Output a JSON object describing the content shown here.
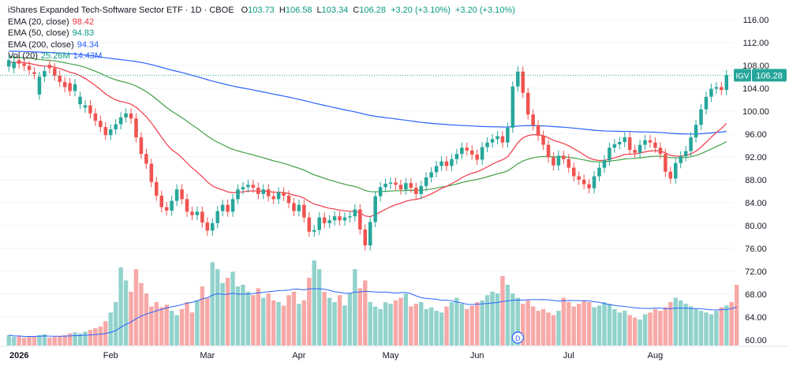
{
  "header": {
    "title": "iShares Expanded Tech-Software Sector ETF · 1D · CBOE",
    "o_label": "O",
    "o_value": "103.73",
    "h_label": "H",
    "h_value": "106.58",
    "l_label": "L",
    "l_value": "103.34",
    "c_label": "C",
    "c_value": "106.28",
    "change": "+3.20 (+3.10%)",
    "change2": "+3.20 (+3.10%)"
  },
  "indicators": [
    {
      "label": "EMA (20, close)",
      "value": "98.42",
      "color": "#f23645"
    },
    {
      "label": "EMA (50, close)",
      "value": "94.83",
      "color": "#089981"
    },
    {
      "label": "EMA (200, close)",
      "value": "94.34",
      "color": "#2962ff"
    },
    {
      "label": "Vol (20)",
      "value": "25.26M",
      "value2": "14.43M"
    }
  ],
  "colors": {
    "up": "#26a69a",
    "down": "#ef5350",
    "vol_up": "#92d2cc",
    "vol_down": "#f7a9a7",
    "grid": "#f0f3fa",
    "axis_text": "#131722"
  },
  "icons": {
    "dividend_marker": "dividend-icon"
  },
  "chart_data": {
    "type": "candlestick",
    "symbol": "IGV",
    "last_price": "106.28",
    "yaxis_ticks": [
      "116.00",
      "112.00",
      "108.00",
      "104.00",
      "100.00",
      "96.00",
      "92.00",
      "88.00",
      "84.00",
      "80.00",
      "76.00",
      "72.00",
      "68.00",
      "64.00",
      "60.00"
    ],
    "ylim": [
      59,
      117.5
    ],
    "xaxis_labels": [
      {
        "label": "2026",
        "index": 0
      },
      {
        "label": "Feb",
        "index": 20
      },
      {
        "label": "Mar",
        "index": 39
      },
      {
        "label": "Apr",
        "index": 57
      },
      {
        "label": "May",
        "index": 75
      },
      {
        "label": "Jun",
        "index": 92
      },
      {
        "label": "Jul",
        "index": 110
      },
      {
        "label": "Aug",
        "index": 127
      }
    ],
    "dividend_marker_index": 100,
    "dividend_marker_label": "D",
    "close": [
      108.9,
      108.6,
      108.3,
      107.9,
      107.2,
      106.5,
      106.0,
      107.0,
      107.5,
      106.2,
      105.1,
      104.2,
      103.5,
      104.7,
      102.5,
      101.0,
      99.6,
      98.3,
      97.2,
      95.8,
      96.8,
      97.7,
      98.9,
      99.6,
      98.7,
      95.4,
      92.5,
      90.8,
      87.6,
      85.2,
      83.2,
      82.6,
      84.3,
      86.3,
      84.6,
      82.4,
      81.8,
      82.4,
      80.5,
      79.1,
      80.4,
      82.5,
      83.6,
      82.4,
      84.6,
      86.3,
      86.7,
      87.1,
      86.6,
      85.5,
      86.3,
      85.1,
      84.6,
      85.8,
      85.2,
      83.9,
      82.5,
      83.6,
      81.4,
      78.9,
      79.2,
      81.4,
      80.4,
      80.9,
      81.6,
      80.9,
      81.4,
      81.6,
      82.8,
      79.3,
      76.5,
      80.6,
      85.1,
      86.7,
      87.3,
      87.5,
      87.1,
      86.3,
      87.4,
      86.6,
      85.5,
      86.9,
      88.4,
      89.3,
      90.4,
      91.2,
      90.4,
      91.6,
      92.5,
      93.6,
      93.1,
      92.4,
      91.5,
      93.7,
      94.5,
      95.1,
      95.6,
      94.5,
      97.1,
      104.3,
      106.9,
      103.2,
      99.4,
      97.5,
      95.7,
      94.1,
      91.9,
      90.5,
      92.2,
      91.6,
      90.1,
      88.6,
      88.0,
      87.2,
      86.5,
      88.6,
      90.1,
      91.4,
      93.6,
      94.2,
      94.6,
      95.4,
      93.2,
      92.7,
      94.1,
      94.9,
      94.5,
      93.6,
      92.5,
      89.4,
      88.2,
      90.9,
      92.1,
      93.0,
      95.4,
      97.6,
      100.3,
      102.5,
      103.9,
      104.2,
      103.7,
      106.3
    ],
    "open": [
      107.8,
      107.5,
      108.9,
      108.3,
      107.9,
      106.8,
      102.9,
      106.0,
      108.1,
      107.5,
      106.2,
      105.1,
      104.9,
      103.5,
      101.2,
      100.6,
      101.0,
      99.6,
      98.3,
      97.2,
      95.8,
      96.8,
      97.7,
      98.9,
      99.6,
      98.7,
      95.4,
      92.5,
      90.8,
      87.6,
      85.2,
      83.2,
      82.6,
      84.3,
      86.3,
      84.6,
      82.4,
      81.8,
      82.4,
      80.5,
      79.1,
      80.4,
      82.5,
      83.6,
      82.4,
      84.6,
      86.3,
      86.7,
      87.1,
      86.6,
      85.5,
      86.3,
      85.1,
      84.6,
      85.8,
      85.2,
      83.9,
      82.5,
      83.6,
      81.4,
      78.9,
      79.2,
      81.4,
      80.4,
      80.9,
      81.6,
      80.9,
      81.4,
      81.6,
      82.8,
      79.3,
      76.5,
      80.6,
      85.1,
      86.7,
      87.3,
      87.5,
      87.1,
      86.3,
      87.4,
      86.6,
      85.5,
      86.9,
      88.4,
      89.3,
      90.4,
      91.2,
      90.4,
      91.6,
      92.5,
      93.6,
      93.1,
      92.4,
      91.5,
      93.7,
      94.5,
      95.1,
      95.6,
      94.5,
      97.1,
      104.3,
      106.9,
      103.2,
      99.4,
      97.5,
      95.7,
      94.1,
      91.9,
      90.5,
      92.2,
      91.6,
      90.1,
      88.6,
      88.0,
      87.2,
      86.5,
      88.6,
      90.1,
      91.4,
      93.6,
      94.2,
      94.6,
      95.4,
      93.2,
      92.7,
      94.1,
      94.9,
      94.5,
      93.6,
      92.5,
      89.4,
      88.2,
      90.9,
      92.1,
      93.0,
      95.4,
      97.6,
      100.3,
      102.5,
      103.9,
      104.2,
      103.7
    ],
    "volume_relative": [
      0.12,
      0.1,
      0.11,
      0.09,
      0.1,
      0.11,
      0.12,
      0.13,
      0.09,
      0.1,
      0.11,
      0.12,
      0.14,
      0.15,
      0.14,
      0.16,
      0.18,
      0.2,
      0.22,
      0.28,
      0.38,
      0.5,
      0.9,
      0.75,
      0.62,
      0.88,
      0.72,
      0.6,
      0.45,
      0.5,
      0.44,
      0.47,
      0.4,
      0.35,
      0.42,
      0.5,
      0.38,
      0.52,
      0.68,
      0.55,
      0.96,
      0.88,
      0.72,
      0.78,
      0.85,
      0.68,
      0.7,
      0.62,
      0.58,
      0.66,
      0.55,
      0.6,
      0.52,
      0.5,
      0.46,
      0.58,
      0.62,
      0.48,
      0.52,
      0.78,
      0.98,
      0.88,
      0.62,
      0.55,
      0.5,
      0.58,
      0.46,
      0.6,
      0.88,
      0.66,
      0.75,
      0.5,
      0.45,
      0.42,
      0.5,
      0.48,
      0.52,
      0.55,
      0.6,
      0.45,
      0.48,
      0.5,
      0.42,
      0.44,
      0.4,
      0.38,
      0.45,
      0.5,
      0.55,
      0.48,
      0.42,
      0.46,
      0.5,
      0.52,
      0.58,
      0.62,
      0.6,
      0.8,
      0.7,
      0.6,
      0.55,
      0.48,
      0.52,
      0.45,
      0.4,
      0.42,
      0.38,
      0.35,
      0.4,
      0.55,
      0.5,
      0.45,
      0.48,
      0.52,
      0.5,
      0.44,
      0.46,
      0.5,
      0.48,
      0.42,
      0.38,
      0.4,
      0.35,
      0.32,
      0.3,
      0.36,
      0.38,
      0.42,
      0.4,
      0.44,
      0.5,
      0.55,
      0.52,
      0.48,
      0.45,
      0.42,
      0.4,
      0.38,
      0.36,
      0.4,
      0.44,
      0.46,
      0.5,
      0.7
    ]
  }
}
